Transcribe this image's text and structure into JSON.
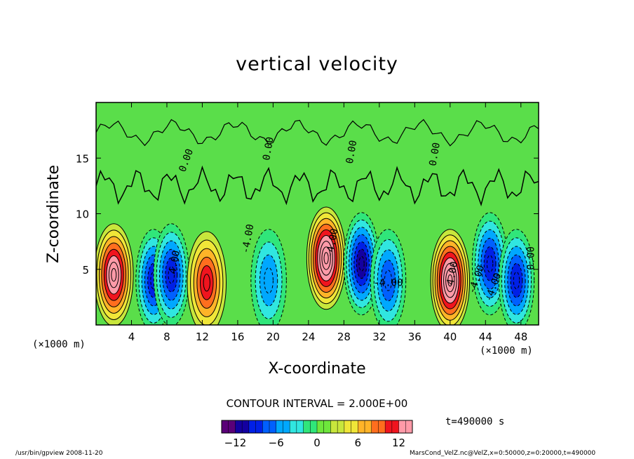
{
  "chart_data": {
    "type": "heatmap",
    "title": "vertical velocity",
    "xlabel": "X-coordinate",
    "ylabel": "Z-coordinate",
    "x_unit": "(×1000 m)",
    "y_unit": "(×1000 m)",
    "xlim": [
      0,
      50
    ],
    "ylim": [
      0,
      20
    ],
    "x_ticks": [
      4,
      8,
      12,
      16,
      20,
      24,
      28,
      32,
      36,
      40,
      44,
      48
    ],
    "y_ticks": [
      5,
      10,
      15
    ],
    "contour_interval": "CONTOUR INTERVAL = 2.000E+00",
    "contour_labels": [
      "0.00",
      "0.00",
      "0.00",
      "0.00",
      "0.00",
      "-4.00",
      "-4.00",
      "-4.00",
      "-4.00",
      "-4.00",
      "4.00",
      "4.00"
    ],
    "colorbar": {
      "range": [
        -14,
        14
      ],
      "ticks": [
        -12,
        -6,
        0,
        6,
        12
      ],
      "colors": [
        "#5a0078",
        "#1400a0",
        "#0020e6",
        "#0060ff",
        "#00a8ff",
        "#30e6e0",
        "#30e67a",
        "#6ee63c",
        "#c8e63c",
        "#f0e638",
        "#ffb428",
        "#ff6e1e",
        "#f0141e",
        "#ff9aa8"
      ]
    },
    "features": [
      {
        "sign": "up",
        "x": 2,
        "z": 4.5,
        "peak": 14
      },
      {
        "sign": "down",
        "x": 6.5,
        "z": 4,
        "peak": -10
      },
      {
        "sign": "down",
        "x": 8.5,
        "z": 4.5,
        "peak": -9
      },
      {
        "sign": "up",
        "x": 12.5,
        "z": 3.8,
        "peak": 10
      },
      {
        "sign": "down",
        "x": 19.5,
        "z": 4,
        "peak": -6
      },
      {
        "sign": "up",
        "x": 26,
        "z": 6,
        "peak": 16
      },
      {
        "sign": "down",
        "x": 30,
        "z": 5.5,
        "peak": -12
      },
      {
        "sign": "down",
        "x": 33,
        "z": 4,
        "peak": -7
      },
      {
        "sign": "up",
        "x": 40,
        "z": 4,
        "peak": 16
      },
      {
        "sign": "down",
        "x": 44.5,
        "z": 5.5,
        "peak": -10
      },
      {
        "sign": "down",
        "x": 47.5,
        "z": 4,
        "peak": -9
      }
    ]
  },
  "labels": {
    "title": "vertical velocity",
    "xlabel": "X-coordinate",
    "ylabel": "Z-coordinate",
    "xunit_left": "(×1000 m)",
    "xunit_right": "(×1000 m)",
    "contour_interval": "CONTOUR INTERVAL = 2.000E+00",
    "time": "t=490000 s",
    "footer_left": "/usr/bin/gpview  2008-11-20",
    "footer_right": "MarsCond_VelZ.nc@VelZ,x=0:50000,z=0:20000,t=490000"
  }
}
